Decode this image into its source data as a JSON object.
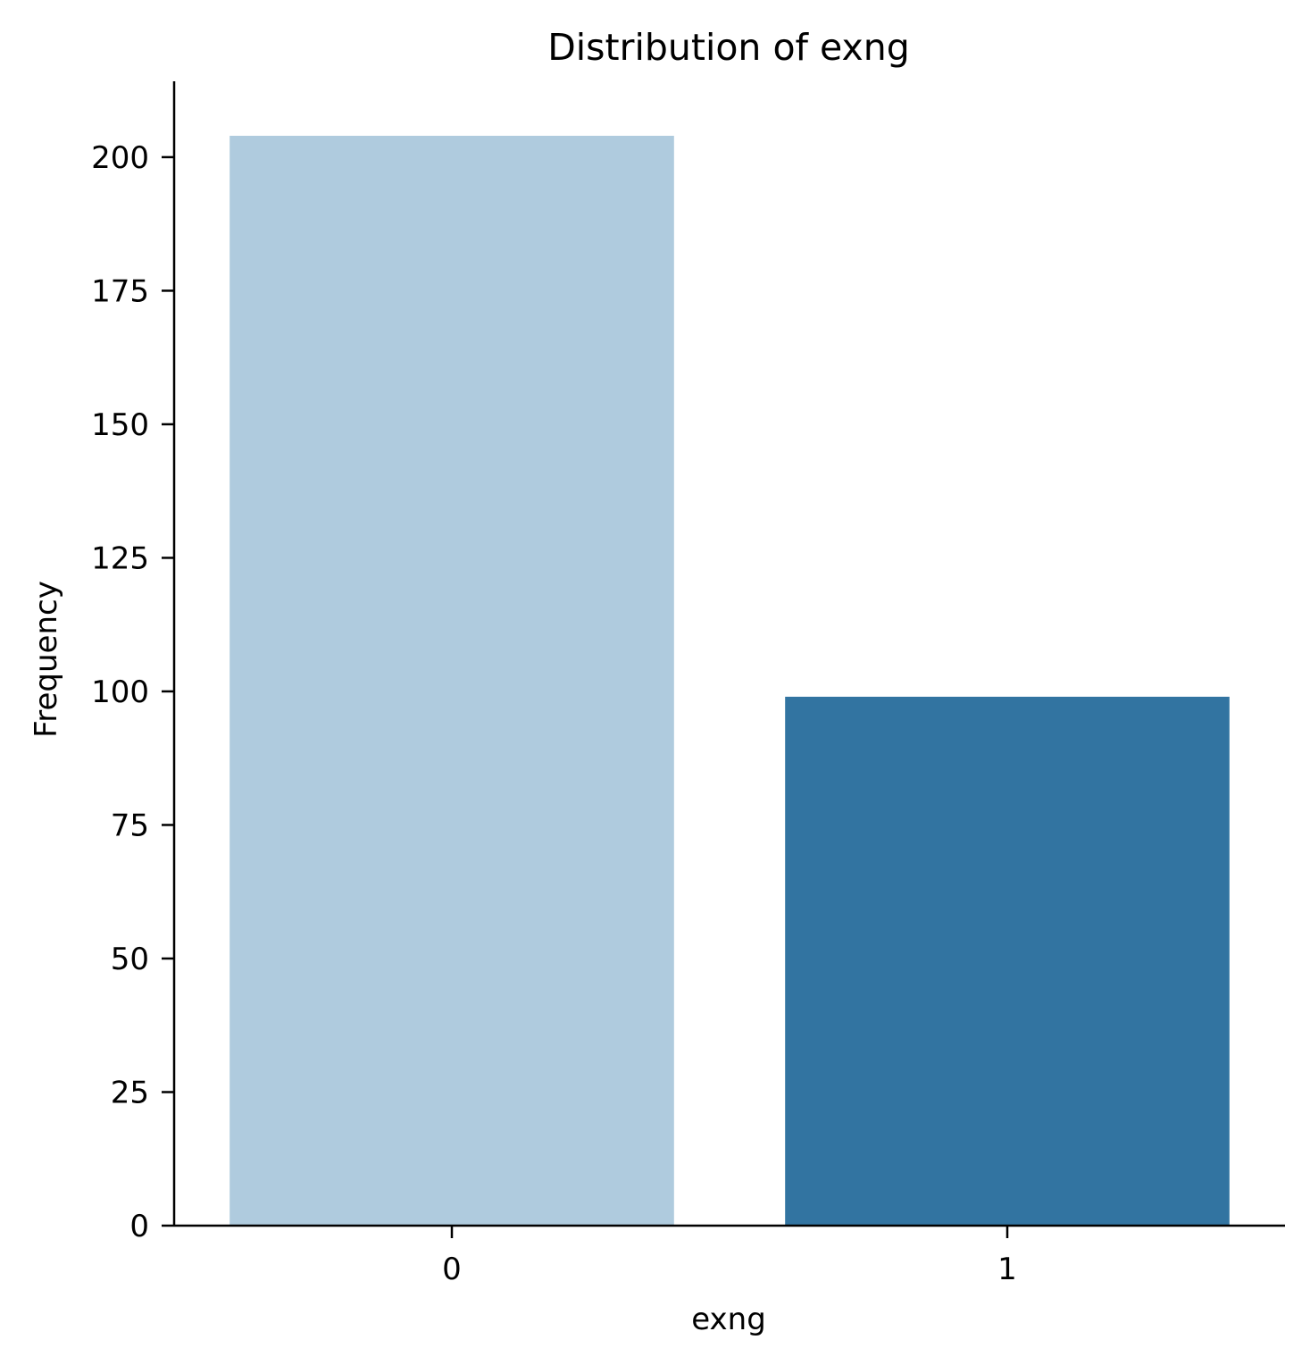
{
  "chart_data": {
    "type": "bar",
    "title": "Distribution of exng",
    "xlabel": "exng",
    "ylabel": "Frequency",
    "categories": [
      "0",
      "1"
    ],
    "values": [
      204,
      99
    ],
    "colors": [
      "#afcbde",
      "#3274a1"
    ],
    "ylim": [
      0,
      214.2
    ],
    "yticks": [
      0,
      25,
      50,
      75,
      100,
      125,
      150,
      175,
      200
    ],
    "grid": false,
    "legend": "none",
    "spines": "left-bottom"
  }
}
